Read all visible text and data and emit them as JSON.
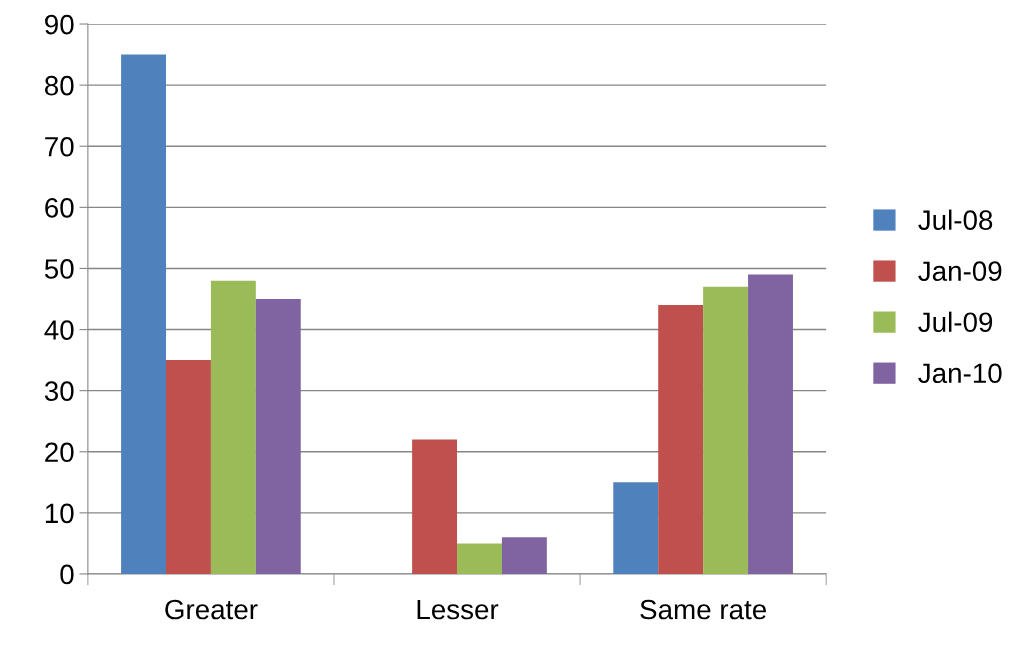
{
  "chart_data": {
    "type": "bar",
    "categories": [
      "Greater",
      "Lesser",
      "Same rate"
    ],
    "series": [
      {
        "name": "Jul-08",
        "color": "#4f81bd",
        "values": [
          85,
          0,
          15
        ]
      },
      {
        "name": "Jan-09",
        "color": "#c0504d",
        "values": [
          35,
          22,
          44
        ]
      },
      {
        "name": "Jul-09",
        "color": "#9bbb59",
        "values": [
          48,
          5,
          47
        ]
      },
      {
        "name": "Jan-10",
        "color": "#8064a2",
        "values": [
          45,
          6,
          49
        ]
      }
    ],
    "ylim": [
      0,
      90
    ],
    "yticks": [
      0,
      10,
      20,
      30,
      40,
      50,
      60,
      70,
      80,
      90
    ],
    "grid": "y",
    "legend": "right"
  }
}
